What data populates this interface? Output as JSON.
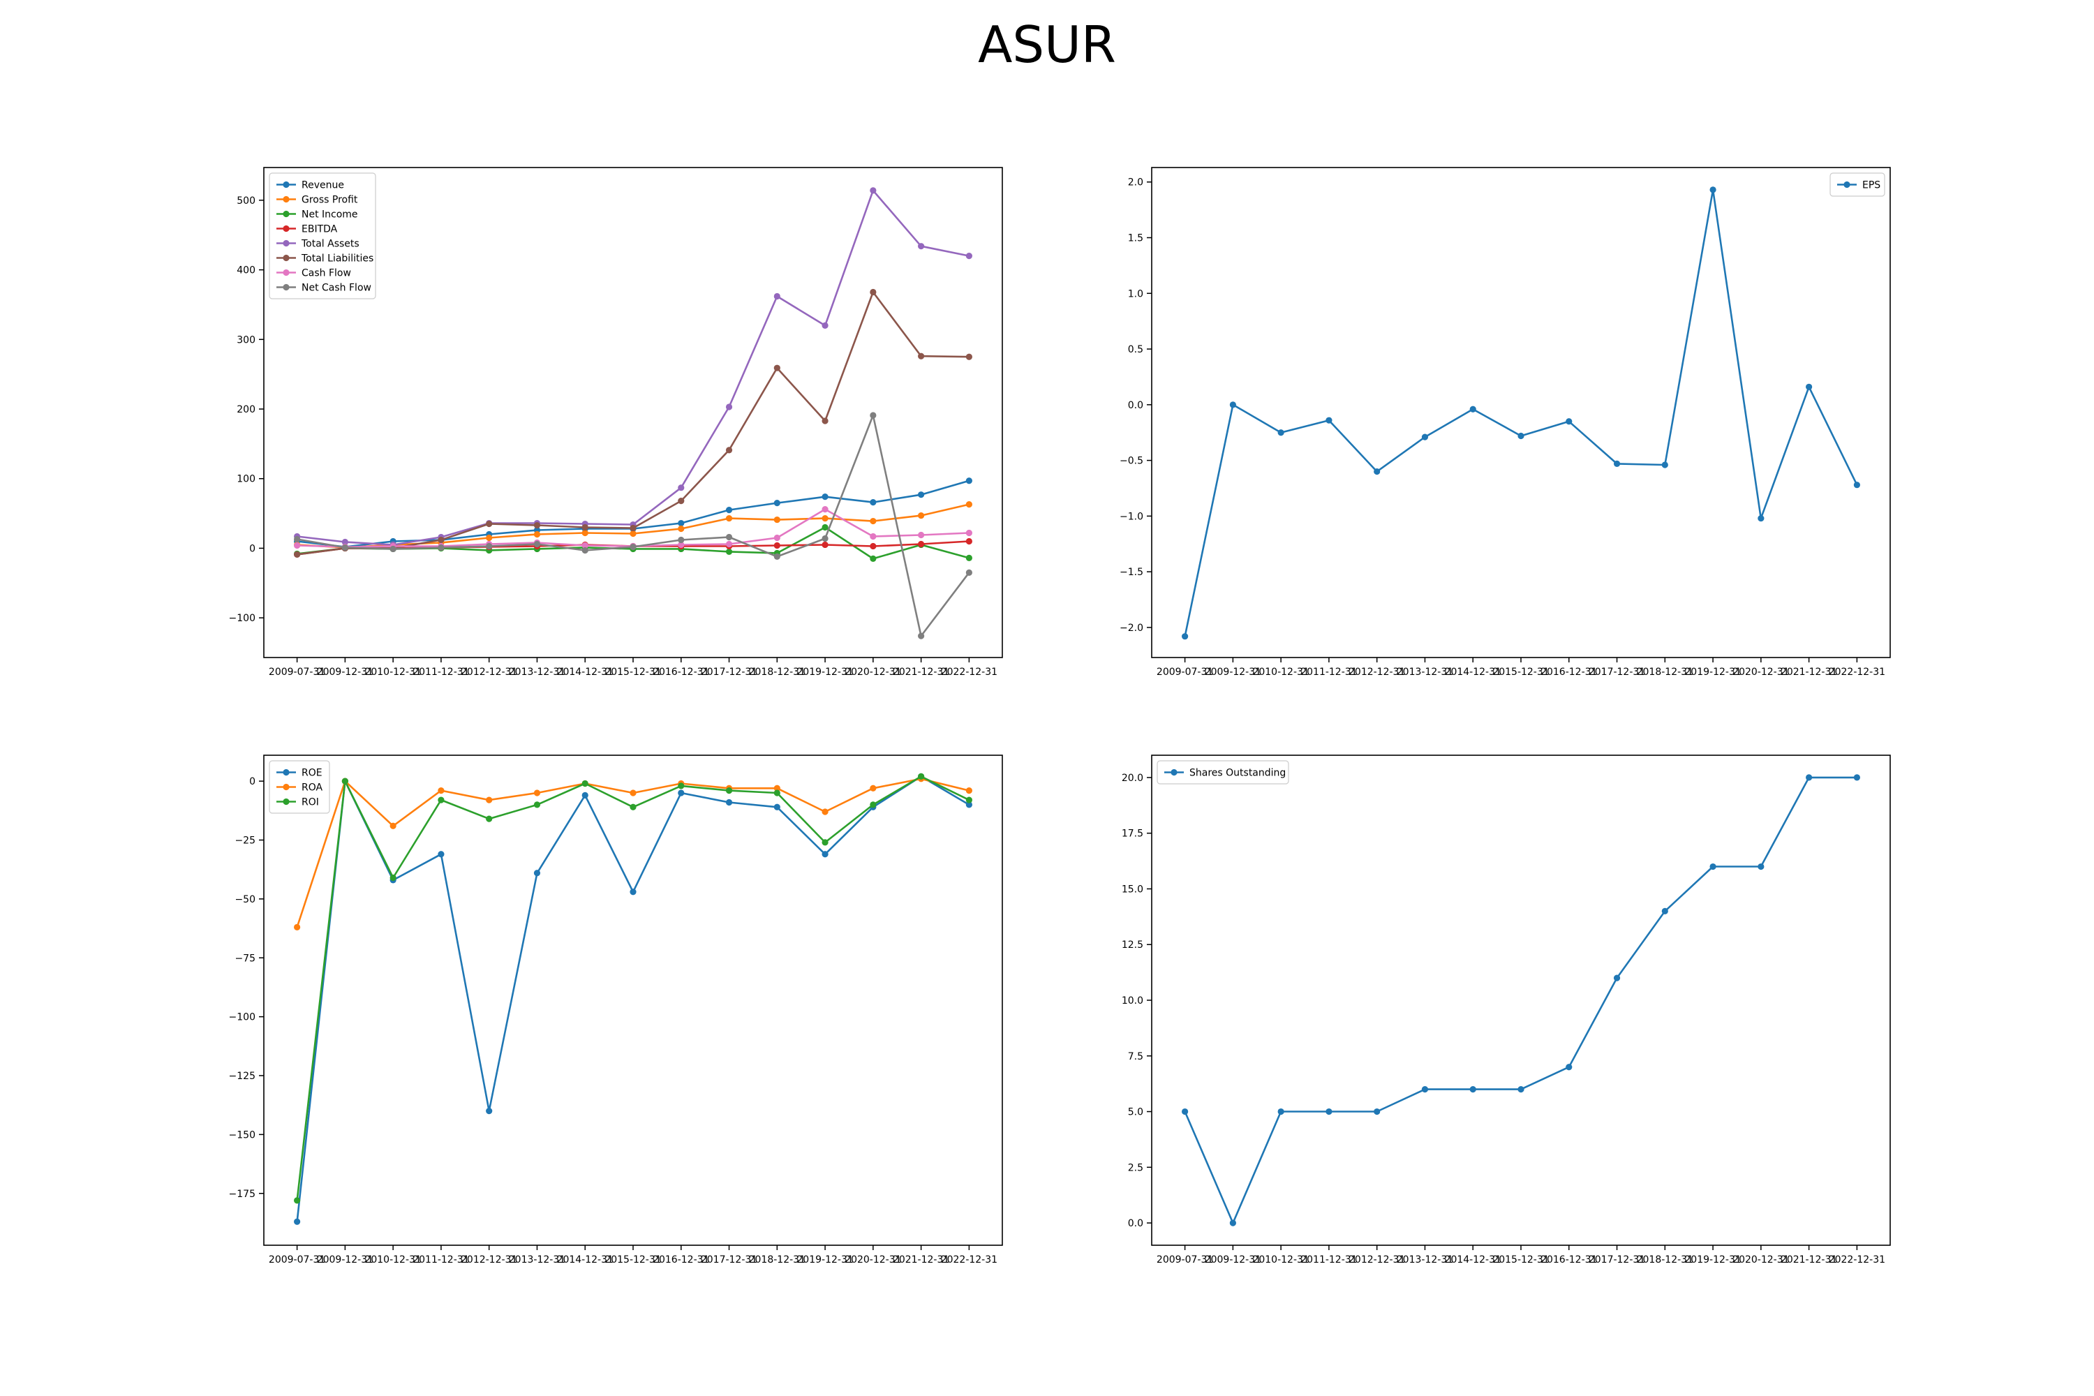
{
  "title": "ASUR",
  "chart_data": [
    {
      "type": "line",
      "categories": [
        "2009-07-31",
        "2009-12-31",
        "2010-12-31",
        "2011-12-31",
        "2012-12-31",
        "2013-12-31",
        "2014-12-31",
        "2015-12-31",
        "2016-12-31",
        "2017-12-31",
        "2018-12-31",
        "2019-12-31",
        "2020-12-31",
        "2021-12-31",
        "2022-12-31"
      ],
      "ylim": [
        -157,
        547
      ],
      "yticks": [
        -100,
        0,
        100,
        200,
        300,
        400,
        500
      ],
      "ytick_labels": [
        "−100",
        "0",
        "100",
        "200",
        "300",
        "400",
        "500"
      ],
      "legend": "top-left",
      "series": [
        {
          "name": "Revenue",
          "color": "#1f77b4",
          "values": [
            10,
            2,
            10,
            12,
            20,
            26,
            28,
            28,
            36,
            55,
            65,
            74,
            66,
            77,
            97
          ]
        },
        {
          "name": "Gross Profit",
          "color": "#ff7f0e",
          "values": [
            5,
            1,
            5,
            8,
            15,
            20,
            22,
            21,
            28,
            43,
            41,
            43,
            39,
            47,
            63
          ]
        },
        {
          "name": "Net Income",
          "color": "#2ca02c",
          "values": [
            -8,
            0,
            -1,
            0,
            -3,
            -1,
            1,
            -1,
            -1,
            -5,
            -7,
            30,
            -15,
            5,
            -14
          ]
        },
        {
          "name": "EBITDA",
          "color": "#d62728",
          "values": [
            -9,
            0,
            0,
            1,
            2,
            3,
            5,
            3,
            3,
            3,
            4,
            5,
            3,
            6,
            10
          ]
        },
        {
          "name": "Total Assets",
          "color": "#9467bd",
          "values": [
            17,
            9,
            5,
            16,
            36,
            36,
            35,
            34,
            87,
            203,
            362,
            320,
            514,
            434,
            420
          ]
        },
        {
          "name": "Total Liabilities",
          "color": "#8c564b",
          "values": [
            -9,
            0,
            0,
            12,
            35,
            33,
            30,
            29,
            68,
            141,
            259,
            183,
            368,
            276,
            275
          ]
        },
        {
          "name": "Cash Flow",
          "color": "#e377c2",
          "values": [
            4,
            2,
            3,
            3,
            6,
            8,
            4,
            3,
            5,
            6,
            15,
            56,
            17,
            19,
            22
          ]
        },
        {
          "name": "Net Cash Flow",
          "color": "#7f7f7f",
          "values": [
            13,
            1,
            -1,
            1,
            3,
            6,
            -3,
            2,
            12,
            16,
            -12,
            14,
            191,
            -126,
            -35
          ]
        }
      ]
    },
    {
      "type": "line",
      "categories": [
        "2009-07-31",
        "2009-12-31",
        "2010-12-31",
        "2011-12-31",
        "2012-12-31",
        "2013-12-31",
        "2014-12-31",
        "2015-12-31",
        "2016-12-31",
        "2017-12-31",
        "2018-12-31",
        "2019-12-31",
        "2020-12-31",
        "2021-12-31",
        "2022-12-31"
      ],
      "ylim": [
        -2.27,
        2.13
      ],
      "yticks": [
        -2.0,
        -1.5,
        -1.0,
        -0.5,
        0.0,
        0.5,
        1.0,
        1.5,
        2.0
      ],
      "ytick_labels": [
        "−2.0",
        "−1.5",
        "−1.0",
        "−0.5",
        "0.0",
        "0.5",
        "1.0",
        "1.5",
        "2.0"
      ],
      "legend": "top-right",
      "series": [
        {
          "name": "EPS",
          "color": "#1f77b4",
          "values": [
            -2.08,
            0.0,
            -0.25,
            -0.14,
            -0.6,
            -0.29,
            -0.04,
            -0.28,
            -0.15,
            -0.53,
            -0.54,
            1.93,
            -1.02,
            0.16,
            -0.72
          ]
        }
      ]
    },
    {
      "type": "line",
      "categories": [
        "2009-07-31",
        "2009-12-31",
        "2010-12-31",
        "2011-12-31",
        "2012-12-31",
        "2013-12-31",
        "2014-12-31",
        "2015-12-31",
        "2016-12-31",
        "2017-12-31",
        "2018-12-31",
        "2019-12-31",
        "2020-12-31",
        "2021-12-31",
        "2022-12-31"
      ],
      "ylim": [
        -197,
        11
      ],
      "yticks": [
        -175,
        -150,
        -125,
        -100,
        -75,
        -50,
        -25,
        0
      ],
      "ytick_labels": [
        "−175",
        "−150",
        "−125",
        "−100",
        "−75",
        "−50",
        "−25",
        "0"
      ],
      "legend": "top-left",
      "series": [
        {
          "name": "ROE",
          "color": "#1f77b4",
          "values": [
            -187,
            0,
            -42,
            -31,
            -140,
            -39,
            -6,
            -47,
            -5,
            -9,
            -11,
            -31,
            -11,
            2,
            -10
          ]
        },
        {
          "name": "ROA",
          "color": "#ff7f0e",
          "values": [
            -62,
            0,
            -19,
            -4,
            -8,
            -5,
            -1,
            -5,
            -1,
            -3,
            -3,
            -13,
            -3,
            1,
            -4
          ]
        },
        {
          "name": "ROI",
          "color": "#2ca02c",
          "values": [
            -178,
            0,
            -41,
            -8,
            -16,
            -10,
            -1,
            -11,
            -2,
            -4,
            -5,
            -26,
            -10,
            2,
            -8
          ]
        }
      ]
    },
    {
      "type": "line",
      "categories": [
        "2009-07-31",
        "2009-12-31",
        "2010-12-31",
        "2011-12-31",
        "2012-12-31",
        "2013-12-31",
        "2014-12-31",
        "2015-12-31",
        "2016-12-31",
        "2017-12-31",
        "2018-12-31",
        "2019-12-31",
        "2020-12-31",
        "2021-12-31",
        "2022-12-31"
      ],
      "ylim": [
        -1.0,
        21.0
      ],
      "yticks": [
        0.0,
        2.5,
        5.0,
        7.5,
        10.0,
        12.5,
        15.0,
        17.5,
        20.0
      ],
      "ytick_labels": [
        "0.0",
        "2.5",
        "5.0",
        "7.5",
        "10.0",
        "12.5",
        "15.0",
        "17.5",
        "20.0"
      ],
      "legend": "top-left",
      "series": [
        {
          "name": "Shares Outstanding",
          "color": "#1f77b4",
          "values": [
            5,
            0,
            5,
            5,
            5,
            6,
            6,
            6,
            7,
            11,
            14,
            16,
            16,
            20,
            20
          ]
        }
      ]
    }
  ]
}
